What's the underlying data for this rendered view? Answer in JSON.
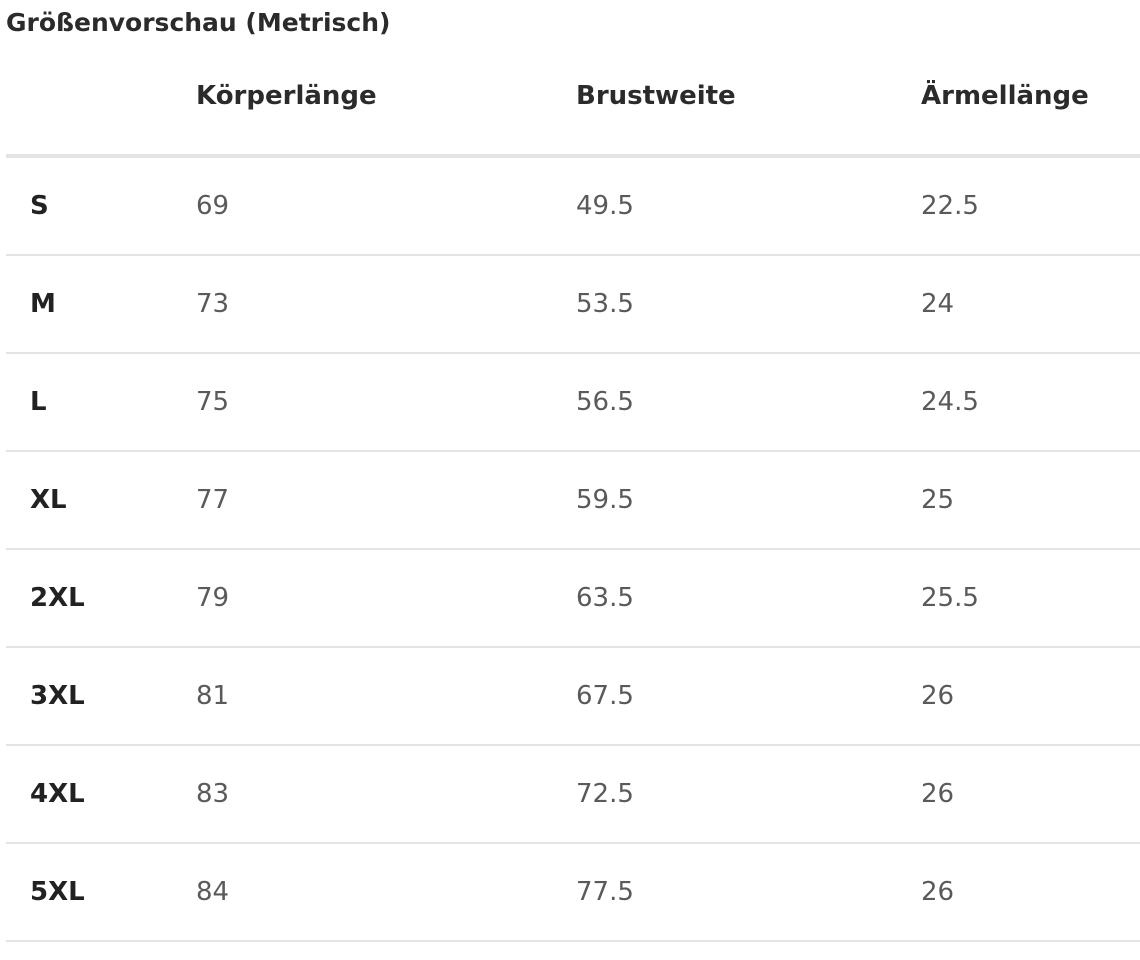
{
  "title": "Größenvorschau (Metrisch)",
  "table": {
    "header": [
      "Körperlänge",
      "Brustweite",
      "Ärmellänge"
    ],
    "rows": [
      [
        "S",
        69,
        49.5,
        22.5
      ],
      [
        "M",
        73,
        53.5,
        24
      ],
      [
        "L",
        75,
        56.5,
        24.5
      ],
      [
        "XL",
        77,
        59.5,
        25
      ],
      [
        "2XL",
        79,
        63.5,
        25.5
      ],
      [
        "3XL",
        81,
        67.5,
        26
      ],
      [
        "4XL",
        83,
        72.5,
        26
      ],
      [
        "5XL",
        84,
        77.5,
        26
      ]
    ]
  }
}
